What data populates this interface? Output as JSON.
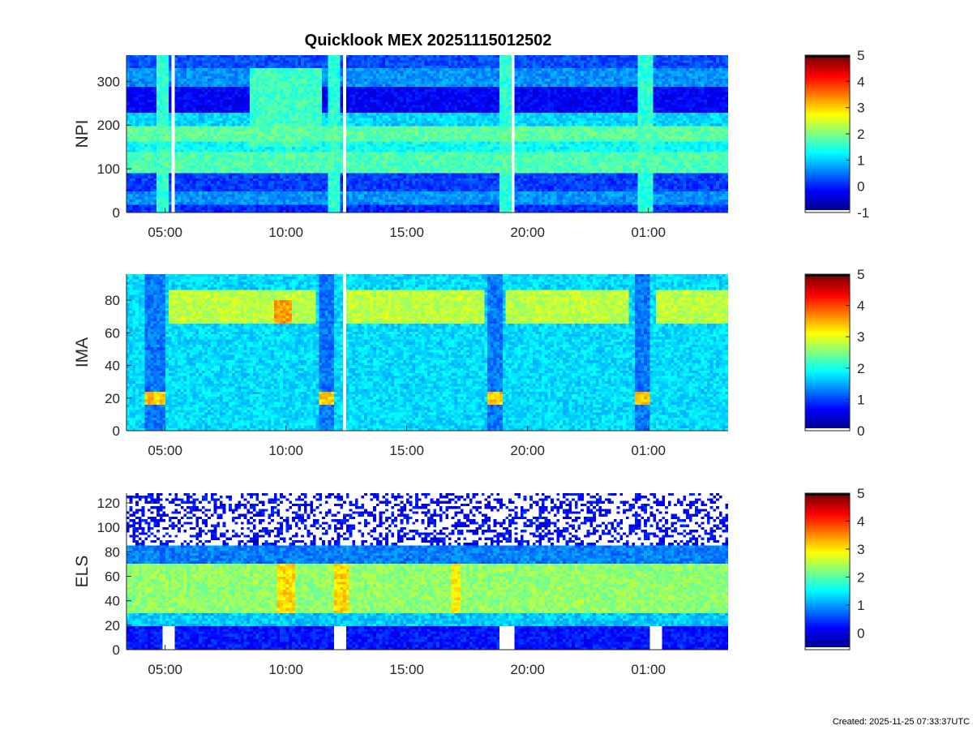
{
  "figure": {
    "title": "Quicklook MEX 20251115012502",
    "created": "Created: 2025-11-25 07:33:37UTC"
  },
  "colormap": [
    "#00008f",
    "#0000ff",
    "#0080ff",
    "#00ffff",
    "#80ff80",
    "#ffff00",
    "#ff8000",
    "#ff0000",
    "#800000"
  ],
  "chart_data": [
    {
      "type": "heatmap",
      "ylabel": "NPI",
      "x_ticks": [
        "05:00",
        "10:00",
        "15:00",
        "20:00",
        "01:00"
      ],
      "x_tick_hours": [
        5,
        10,
        15,
        20,
        25
      ],
      "x_range_hours": [
        3.4,
        28.3
      ],
      "ylim": [
        0,
        360
      ],
      "y_ticks": [
        0,
        100,
        200,
        300
      ],
      "colorbar": {
        "range": [
          -1,
          5
        ],
        "ticks": [
          -1,
          0,
          1,
          2,
          3,
          4,
          5
        ]
      },
      "data_gaps_hours": [
        5.3,
        12.4,
        19.4
      ],
      "mode": "npi"
    },
    {
      "type": "heatmap",
      "ylabel": "IMA",
      "x_ticks": [
        "05:00",
        "10:00",
        "15:00",
        "20:00",
        "01:00"
      ],
      "x_tick_hours": [
        5,
        10,
        15,
        20,
        25
      ],
      "x_range_hours": [
        3.4,
        28.3
      ],
      "ylim": [
        0,
        96
      ],
      "y_ticks": [
        0,
        20,
        40,
        60,
        80
      ],
      "colorbar": {
        "range": [
          0,
          5
        ],
        "ticks": [
          0,
          1,
          2,
          3,
          4,
          5
        ]
      },
      "data_gaps_hours": [
        12.4
      ],
      "mode": "ima"
    },
    {
      "type": "heatmap",
      "ylabel": "ELS",
      "x_ticks": [
        "05:00",
        "10:00",
        "15:00",
        "20:00",
        "01:00"
      ],
      "x_tick_hours": [
        5,
        10,
        15,
        20,
        25
      ],
      "x_range_hours": [
        3.4,
        28.3
      ],
      "ylim": [
        0,
        128
      ],
      "y_ticks": [
        0,
        20,
        40,
        60,
        80,
        100,
        120
      ],
      "colorbar": {
        "range": [
          -0.6,
          5
        ],
        "ticks": [
          0,
          1,
          2,
          3,
          4,
          5
        ]
      },
      "data_gaps_hours": [],
      "mode": "els"
    }
  ]
}
